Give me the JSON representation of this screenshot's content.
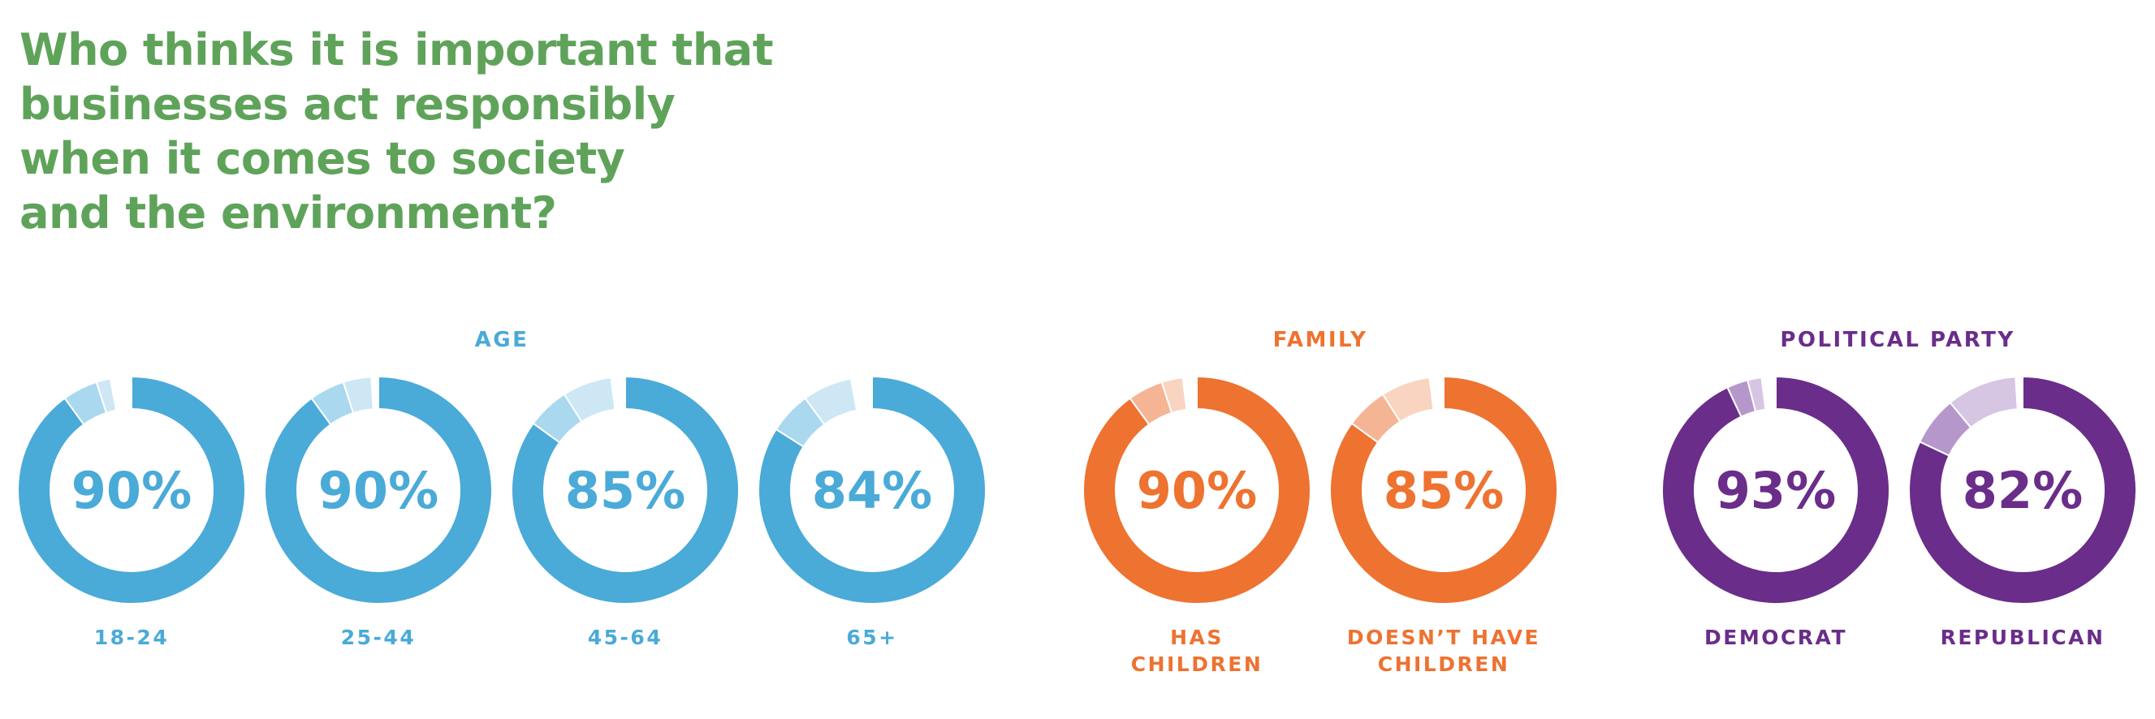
{
  "title_lines": [
    "Who thinks it is important that",
    "businesses act responsibly",
    "when it comes to society",
    "and the environment?"
  ],
  "colors": {
    "title": "#5fa35a",
    "age": {
      "main": "#4aaad8",
      "mid": "#a9d8ef",
      "light": "#cde7f5"
    },
    "family": {
      "main": "#ee7230",
      "mid": "#f5b595",
      "light": "#f9d4c1"
    },
    "party": {
      "main": "#6a2d8a",
      "mid": "#b597cc",
      "light": "#d7c6e3"
    }
  },
  "chart_data": {
    "type": "donut",
    "groups": [
      {
        "title": "AGE",
        "color_key": "age",
        "items": [
          {
            "label": [
              "18-24"
            ],
            "value": 90,
            "display": "90%",
            "other": [
              5,
              2
            ]
          },
          {
            "label": [
              "25-44"
            ],
            "value": 90,
            "display": "90%",
            "other": [
              5,
              4
            ]
          },
          {
            "label": [
              "45-64"
            ],
            "value": 85,
            "display": "85%",
            "other": [
              6,
              7
            ]
          },
          {
            "label": [
              "65+"
            ],
            "value": 84,
            "display": "84%",
            "other": [
              6,
              7
            ]
          }
        ]
      },
      {
        "title": "FAMILY",
        "color_key": "family",
        "items": [
          {
            "label": [
              "HAS",
              "CHILDREN"
            ],
            "value": 90,
            "display": "90%",
            "other": [
              5,
              3
            ]
          },
          {
            "label": [
              "DOESN’T HAVE",
              "CHILDREN"
            ],
            "value": 85,
            "display": "85%",
            "other": [
              6,
              7
            ]
          }
        ]
      },
      {
        "title": "POLITICAL PARTY",
        "color_key": "party",
        "items": [
          {
            "label": [
              "DEMOCRAT"
            ],
            "value": 93,
            "display": "93%",
            "other": [
              3,
              2
            ]
          },
          {
            "label": [
              "REPUBLICAN"
            ],
            "value": 82,
            "display": "82%",
            "other": [
              7,
              10
            ]
          }
        ]
      }
    ]
  }
}
